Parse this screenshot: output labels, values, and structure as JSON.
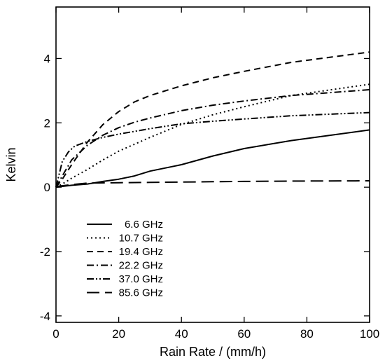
{
  "chart_data": {
    "type": "line",
    "xlabel": "Rain Rate / (mm/h)",
    "ylabel": "Kelvin",
    "xlim": [
      0,
      100
    ],
    "ylim": [
      -4.2,
      5.6
    ],
    "xticks": [
      0,
      20,
      40,
      60,
      80,
      100
    ],
    "yticks": [
      -4,
      -2,
      0,
      2,
      4
    ],
    "grid": false,
    "legend_position": "lower-left",
    "series": [
      {
        "name": "6.6 GHz",
        "style": "solid",
        "x": [
          0,
          5,
          10,
          15,
          20,
          25,
          30,
          40,
          50,
          60,
          75,
          100
        ],
        "y": [
          0.0,
          0.06,
          0.1,
          0.18,
          0.25,
          0.35,
          0.5,
          0.7,
          0.97,
          1.2,
          1.45,
          1.78
        ]
      },
      {
        "name": "10.7 GHz",
        "style": "dotted",
        "x": [
          0,
          2,
          5,
          10,
          15,
          20,
          30,
          40,
          50,
          60,
          75,
          100
        ],
        "y": [
          0.0,
          0.1,
          0.28,
          0.55,
          0.85,
          1.12,
          1.55,
          1.95,
          2.25,
          2.5,
          2.85,
          3.2
        ]
      },
      {
        "name": "19.4 GHz",
        "style": "dashed",
        "x": [
          0,
          2,
          5,
          10,
          15,
          20,
          25,
          30,
          40,
          50,
          60,
          75,
          100
        ],
        "y": [
          0.0,
          0.25,
          0.7,
          1.4,
          1.95,
          2.35,
          2.65,
          2.85,
          3.15,
          3.4,
          3.6,
          3.88,
          4.2
        ]
      },
      {
        "name": "22.2 GHz",
        "style": "dash-dot",
        "x": [
          0,
          2,
          5,
          10,
          15,
          20,
          25,
          30,
          40,
          50,
          60,
          75,
          100
        ],
        "y": [
          0.0,
          0.35,
          0.85,
          1.3,
          1.62,
          1.85,
          2.02,
          2.15,
          2.38,
          2.55,
          2.68,
          2.85,
          3.03
        ]
      },
      {
        "name": "37.0 GHz",
        "style": "dash-dot-dot",
        "x": [
          0,
          2,
          4,
          6,
          10,
          15,
          20,
          30,
          40,
          50,
          60,
          75,
          100
        ],
        "y": [
          0.0,
          0.8,
          1.1,
          1.28,
          1.42,
          1.55,
          1.65,
          1.82,
          1.97,
          2.05,
          2.12,
          2.22,
          2.32
        ]
      },
      {
        "name": "85.6 GHz",
        "style": "long-dash",
        "x": [
          0,
          5,
          10,
          20,
          30,
          40,
          50,
          60,
          75,
          100
        ],
        "y": [
          0.02,
          0.08,
          0.13,
          0.14,
          0.15,
          0.16,
          0.17,
          0.18,
          0.19,
          0.2
        ]
      }
    ]
  }
}
